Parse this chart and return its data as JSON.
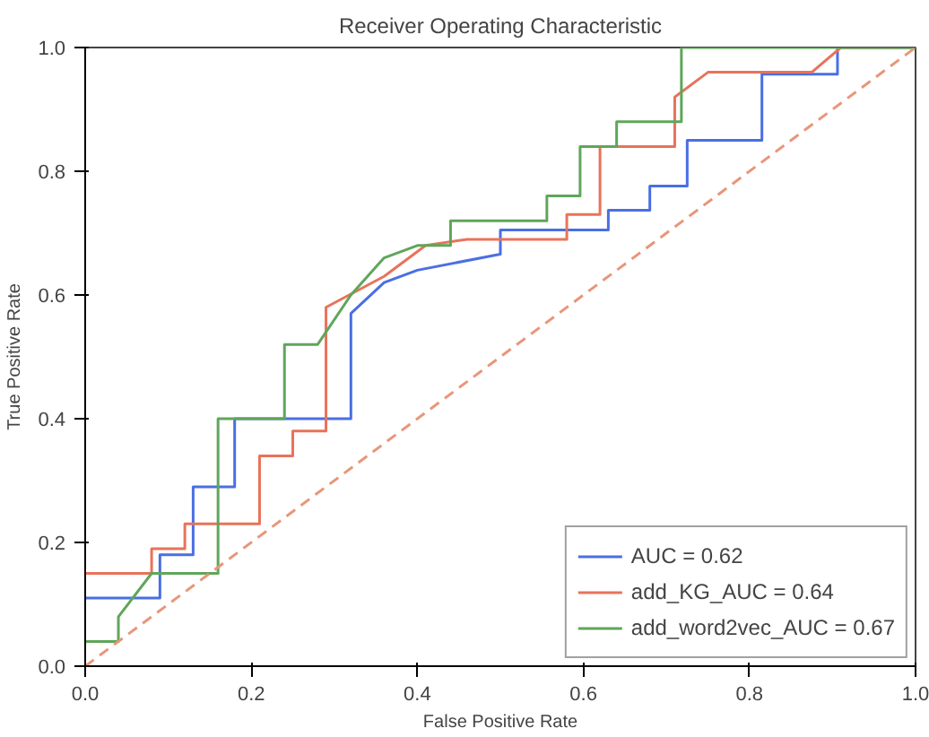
{
  "chart_data": {
    "type": "line",
    "title": "Receiver Operating Characteristic",
    "xlabel": "False Positive Rate",
    "ylabel": "True Positive Rate",
    "xlim": [
      0,
      1
    ],
    "ylim": [
      0,
      1
    ],
    "xticks": [
      {
        "value": 0,
        "label": "0.0"
      },
      {
        "value": 0.2,
        "label": "0.2"
      },
      {
        "value": 0.4,
        "label": "0.4"
      },
      {
        "value": 0.6,
        "label": "0.6"
      },
      {
        "value": 0.8,
        "label": "0.8"
      },
      {
        "value": 1,
        "label": "1.0"
      }
    ],
    "yticks": [
      {
        "value": 0,
        "label": "0.0"
      },
      {
        "value": 0.2,
        "label": "0.2"
      },
      {
        "value": 0.4,
        "label": "0.4"
      },
      {
        "value": 0.6,
        "label": "0.6"
      },
      {
        "value": 0.8,
        "label": "0.8"
      },
      {
        "value": 1,
        "label": "1.0"
      }
    ],
    "grid": false,
    "legend": "bottom right",
    "series": [
      {
        "name": "AUC = 0.62",
        "color": "#4a6fe3",
        "line_style": "solid",
        "x": [
          0,
          0.09,
          0.09,
          0.13,
          0.13,
          0.18,
          0.18,
          0.32,
          0.32,
          0.36,
          0.4,
          0.5,
          0.5,
          0.63,
          0.63,
          0.68,
          0.68,
          0.725,
          0.725,
          0.815,
          0.815,
          0.906,
          0.906,
          1
        ],
        "values": [
          0.11,
          0.11,
          0.18,
          0.18,
          0.29,
          0.29,
          0.4,
          0.4,
          0.57,
          0.62,
          0.64,
          0.666,
          0.705,
          0.705,
          0.737,
          0.737,
          0.776,
          0.776,
          0.85,
          0.85,
          0.957,
          0.957,
          1,
          1
        ]
      },
      {
        "name": "add_KG_AUC = 0.64",
        "color": "#e8735a",
        "line_style": "solid",
        "x": [
          0,
          0.08,
          0.08,
          0.12,
          0.12,
          0.21,
          0.21,
          0.25,
          0.25,
          0.29,
          0.29,
          0.36,
          0.41,
          0.46,
          0.58,
          0.58,
          0.62,
          0.62,
          0.71,
          0.71,
          0.75,
          0.875,
          0.91,
          1
        ],
        "values": [
          0.15,
          0.15,
          0.19,
          0.19,
          0.23,
          0.23,
          0.34,
          0.34,
          0.38,
          0.38,
          0.58,
          0.63,
          0.68,
          0.69,
          0.69,
          0.73,
          0.73,
          0.84,
          0.84,
          0.92,
          0.96,
          0.96,
          1,
          1
        ]
      },
      {
        "name": "add_word2vec_AUC = 0.67",
        "color": "#5fa65a",
        "line_style": "solid",
        "x": [
          0,
          0.04,
          0.04,
          0.08,
          0.16,
          0.16,
          0.24,
          0.24,
          0.28,
          0.32,
          0.36,
          0.4,
          0.44,
          0.44,
          0.556,
          0.556,
          0.596,
          0.596,
          0.64,
          0.64,
          0.718,
          0.718,
          1
        ],
        "values": [
          0.04,
          0.04,
          0.08,
          0.15,
          0.15,
          0.4,
          0.4,
          0.52,
          0.52,
          0.6,
          0.66,
          0.68,
          0.68,
          0.72,
          0.72,
          0.76,
          0.76,
          0.84,
          0.84,
          0.88,
          0.88,
          1,
          1
        ]
      },
      {
        "color": "#e8967a",
        "line_style": "dashed",
        "x": [
          0,
          1
        ],
        "values": [
          0,
          1
        ]
      }
    ]
  }
}
